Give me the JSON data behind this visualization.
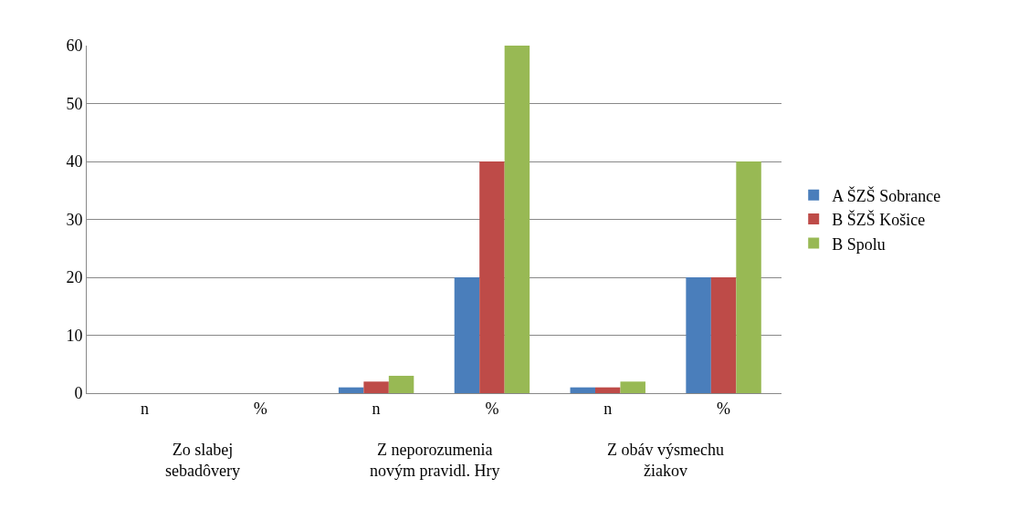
{
  "chart_data": {
    "type": "bar",
    "categories": [
      "n",
      "%",
      "n",
      "%",
      "n",
      "%"
    ],
    "series": [
      {
        "name": "A ŠZŠ Sobrance",
        "color": "#4a7ebb",
        "values": [
          0,
          0,
          1,
          20,
          1,
          20
        ]
      },
      {
        "name": "B ŠZŠ Košice",
        "color": "#be4b48",
        "values": [
          0,
          0,
          2,
          40,
          1,
          20
        ]
      },
      {
        "name": "B Spolu",
        "color": "#98b954",
        "values": [
          0,
          0,
          3,
          60,
          2,
          40
        ]
      }
    ],
    "annotations": [
      "Zo slabej sebadôvery",
      "Z neporozumenia novým pravidl. Hry",
      "Z obáv výsmechu žiakov"
    ],
    "ylim": [
      0,
      60
    ],
    "yticks": [
      0,
      10,
      20,
      30,
      40,
      50,
      60
    ],
    "grid": "y",
    "legend": "right"
  }
}
